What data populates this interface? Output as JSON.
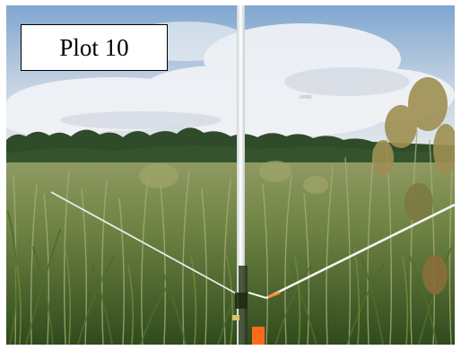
{
  "label": {
    "text": "Plot 10"
  },
  "colors": {
    "sky_top": "#7fa6cf",
    "sky_bottom": "#dfe6ee",
    "cloud": "#f1f3f6",
    "treeline": "#2f4b2a",
    "grass_dark": "#3d5a24",
    "grass_light": "#8a9a55",
    "pole": "#f4f4f2",
    "flag": "#ff6a1a"
  }
}
